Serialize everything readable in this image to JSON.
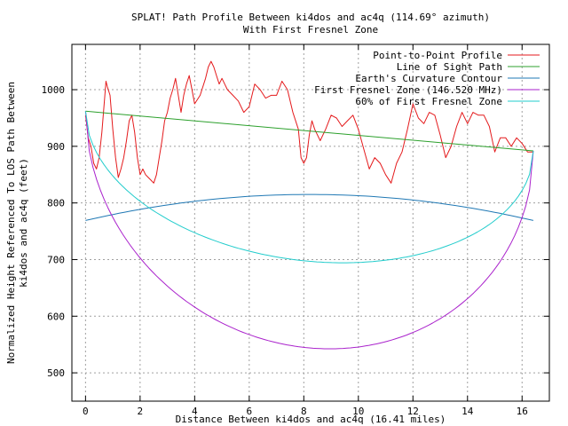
{
  "chart_data": {
    "type": "line",
    "title": "SPLAT! Path Profile Between ki4dos and ac4q (114.69° azimuth)",
    "subtitle": "With First Fresnel Zone",
    "xlabel": "Distance Between ki4dos and ac4q (16.41 miles)",
    "ylabel_line1": "Normalized Height Referenced To LOS Path Between",
    "ylabel_line2": "ki4dos and ac4q (feet)",
    "xlim": [
      -0.5,
      17.0
    ],
    "ylim": [
      450,
      1080
    ],
    "xticks": [
      0,
      2,
      4,
      6,
      8,
      10,
      12,
      14,
      16
    ],
    "yticks": [
      500,
      600,
      700,
      800,
      900,
      1000
    ],
    "xtick_labels": [
      "0",
      "2",
      "4",
      "6",
      "8",
      "10",
      "12",
      "14",
      "16"
    ],
    "ytick_labels": [
      "500",
      "600",
      "700",
      "800",
      "900",
      "1000"
    ],
    "grid": true,
    "legend_position": "top-right",
    "series": [
      {
        "name": "Point-to-Point Profile",
        "color": "#e41a1c",
        "x": [
          0,
          0.1,
          0.2,
          0.3,
          0.4,
          0.5,
          0.6,
          0.7,
          0.75,
          0.8,
          0.9,
          1.0,
          1.1,
          1.2,
          1.3,
          1.4,
          1.5,
          1.6,
          1.7,
          1.8,
          1.9,
          2.0,
          2.1,
          2.2,
          2.3,
          2.4,
          2.5,
          2.6,
          2.7,
          2.8,
          2.9,
          3.0,
          3.1,
          3.2,
          3.3,
          3.4,
          3.5,
          3.6,
          3.7,
          3.8,
          3.9,
          4.0,
          4.2,
          4.4,
          4.5,
          4.6,
          4.7,
          4.8,
          4.9,
          5.0,
          5.2,
          5.4,
          5.6,
          5.8,
          6.0,
          6.2,
          6.4,
          6.6,
          6.8,
          7.0,
          7.2,
          7.4,
          7.6,
          7.8,
          7.9,
          8.0,
          8.1,
          8.2,
          8.3,
          8.4,
          8.6,
          8.8,
          9.0,
          9.2,
          9.4,
          9.6,
          9.8,
          10.0,
          10.2,
          10.4,
          10.6,
          10.8,
          11.0,
          11.2,
          11.4,
          11.6,
          11.8,
          12.0,
          12.2,
          12.4,
          12.6,
          12.8,
          13.0,
          13.2,
          13.4,
          13.6,
          13.8,
          14.0,
          14.2,
          14.4,
          14.6,
          14.8,
          15.0,
          15.2,
          15.4,
          15.6,
          15.8,
          16.0,
          16.2,
          16.41
        ],
        "values": [
          955,
          915,
          900,
          870,
          860,
          880,
          925,
          985,
          1015,
          1005,
          990,
          930,
          880,
          845,
          860,
          880,
          910,
          945,
          955,
          925,
          880,
          850,
          860,
          850,
          845,
          840,
          835,
          850,
          880,
          910,
          945,
          960,
          985,
          1000,
          1020,
          990,
          960,
          990,
          1010,
          1025,
          1000,
          975,
          990,
          1020,
          1040,
          1050,
          1040,
          1025,
          1010,
          1020,
          1000,
          990,
          980,
          960,
          970,
          1010,
          1000,
          985,
          990,
          990,
          1015,
          1000,
          960,
          930,
          880,
          870,
          880,
          920,
          945,
          930,
          910,
          930,
          955,
          950,
          935,
          945,
          955,
          930,
          895,
          860,
          880,
          870,
          850,
          835,
          870,
          890,
          930,
          975,
          950,
          940,
          960,
          955,
          920,
          880,
          900,
          935,
          960,
          940,
          960,
          955,
          955,
          935,
          890,
          915,
          915,
          900,
          915,
          905,
          890,
          890
        ]
      },
      {
        "name": "Line of Sight Path",
        "color": "#2ca02c",
        "x": [
          0,
          16.41
        ],
        "values": [
          962,
          892
        ]
      },
      {
        "name": "Earth's Curvature Contour",
        "color": "#1f78b4",
        "function": "curvature",
        "ends": [
          769,
          769
        ],
        "peak": 815
      },
      {
        "name": "First Fresnel Zone (146.520 MHz)",
        "color": "#aa22cc",
        "function": "fresnel",
        "depth": 383
      },
      {
        "name": "60% of First Fresnel Zone",
        "color": "#22cccc",
        "function": "fresnel",
        "depth": 230
      }
    ]
  }
}
